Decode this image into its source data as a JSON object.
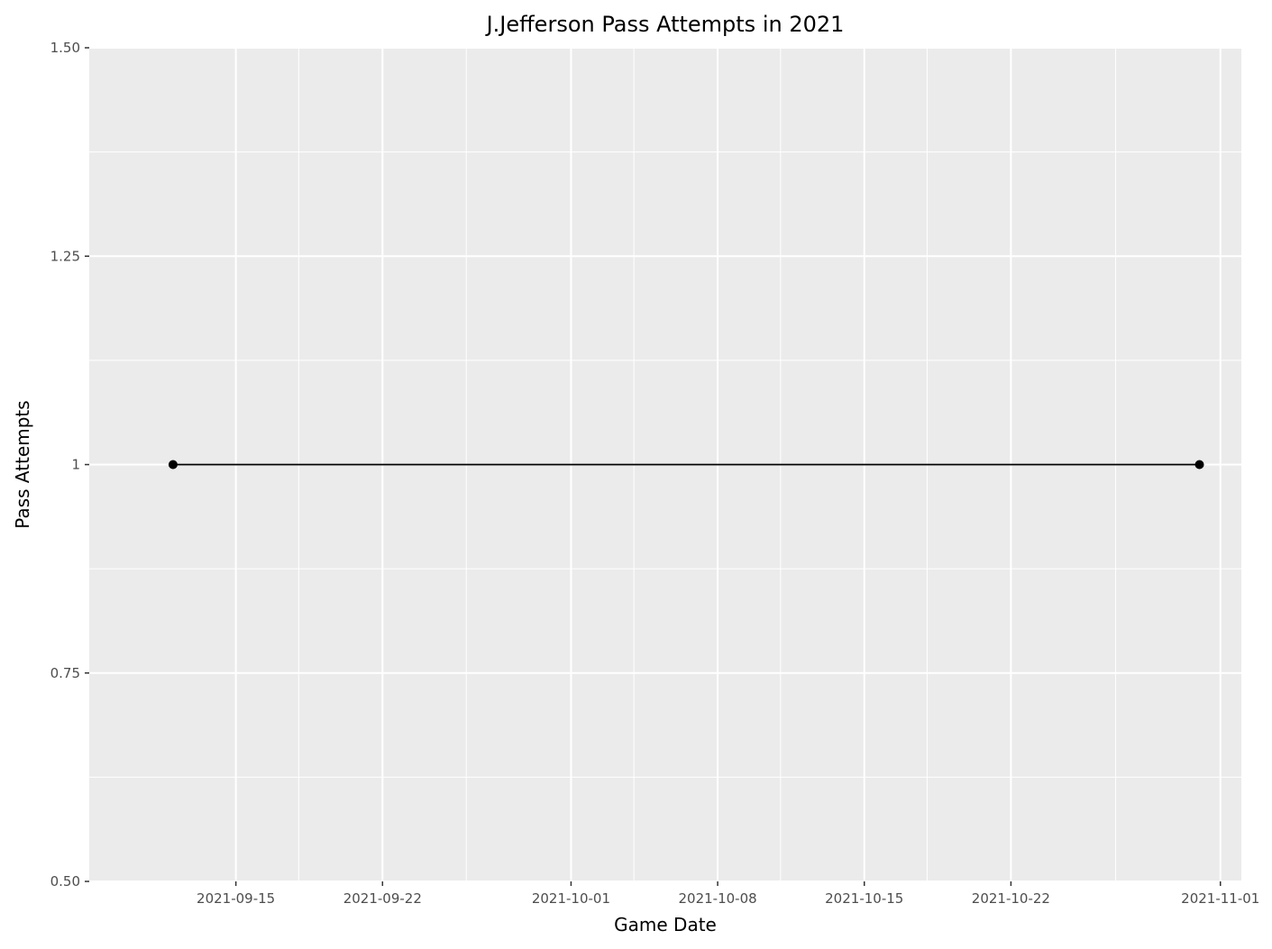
{
  "chart_data": {
    "type": "line",
    "title": "J.Jefferson Pass Attempts in 2021",
    "xlabel": "Game Date",
    "ylabel": "Pass Attempts",
    "x_type": "date",
    "xlim": [
      "2021-09-08",
      "2021-11-02"
    ],
    "ylim": [
      0.5,
      1.5
    ],
    "x_ticks": [
      {
        "date": "2021-09-15",
        "label": "2021-09-15"
      },
      {
        "date": "2021-09-22",
        "label": "2021-09-22"
      },
      {
        "date": "2021-10-01",
        "label": "2021-10-01"
      },
      {
        "date": "2021-10-08",
        "label": "2021-10-08"
      },
      {
        "date": "2021-10-15",
        "label": "2021-10-15"
      },
      {
        "date": "2021-10-22",
        "label": "2021-10-22"
      },
      {
        "date": "2021-11-01",
        "label": "2021-11-01"
      }
    ],
    "x_minor_ticks": [
      "2021-09-18",
      "2021-09-26",
      "2021-10-04",
      "2021-10-11",
      "2021-10-18",
      "2021-10-27"
    ],
    "y_ticks": [
      {
        "value": 0.5,
        "label": "0.50"
      },
      {
        "value": 0.75,
        "label": "0.75"
      },
      {
        "value": 1.0,
        "label": "1"
      },
      {
        "value": 1.25,
        "label": "1.25"
      },
      {
        "value": 1.5,
        "label": "1.50"
      }
    ],
    "y_minor_ticks": [
      0.625,
      0.875,
      1.125,
      1.375
    ],
    "grid": true,
    "legend": "none",
    "series": [
      {
        "x": [
          "2021-09-12",
          "2021-10-31"
        ],
        "y": [
          1,
          1
        ],
        "color": "#000000",
        "markers": true
      }
    ],
    "colors": {
      "panel_background": "#ebebeb",
      "grid": "#ffffff",
      "line": "#000000",
      "tick_label": "#4d4d4d"
    }
  }
}
